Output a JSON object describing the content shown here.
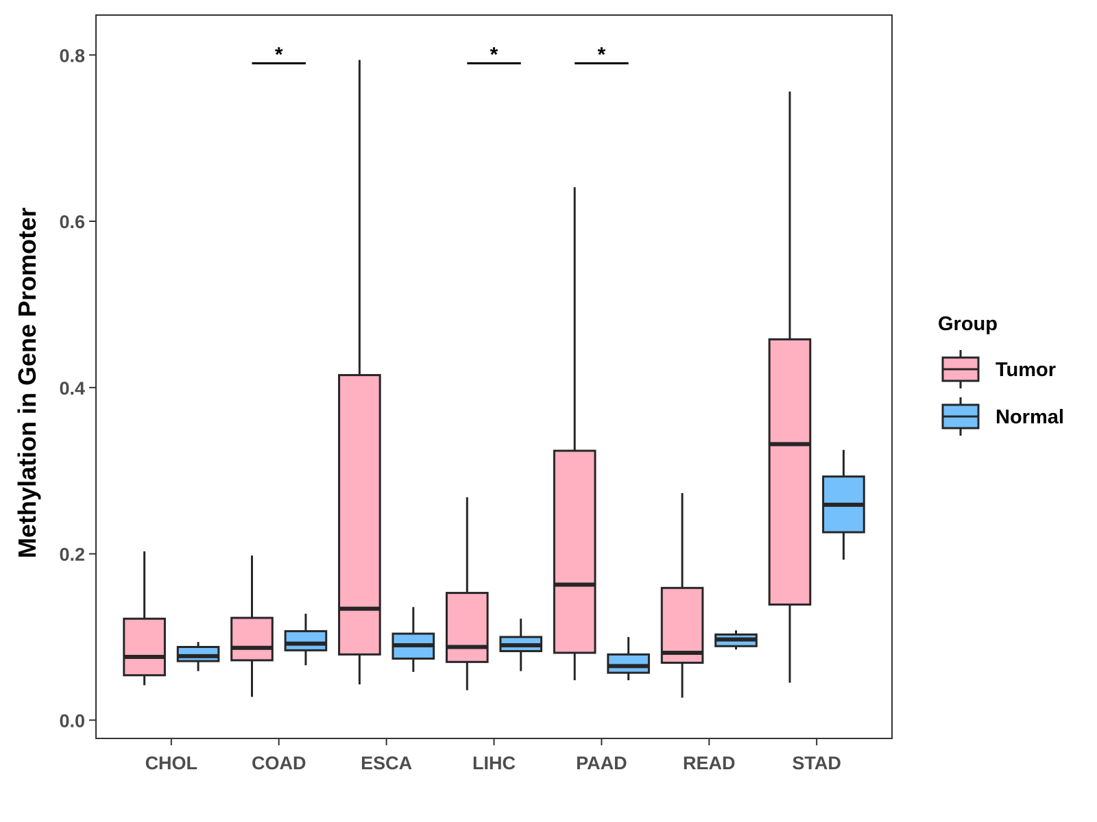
{
  "chart_data": {
    "type": "boxplot",
    "title": "",
    "xlabel": "",
    "ylabel": "Methylation in Gene Promoter",
    "ylim": [
      -0.022,
      0.848
    ],
    "y_ticks": [
      0.0,
      0.2,
      0.4,
      0.6,
      0.8
    ],
    "y_tick_labels": [
      "0.0",
      "0.2",
      "0.4",
      "0.6",
      "0.8"
    ],
    "categories": [
      "CHOL",
      "COAD",
      "ESCA",
      "LIHC",
      "PAAD",
      "READ",
      "STAD"
    ],
    "legend": {
      "title": "Group",
      "placement": "right",
      "entries": [
        {
          "name": "Tumor",
          "color": "#ffb0c1"
        },
        {
          "name": "Normal",
          "color": "#74c0fc"
        }
      ]
    },
    "colors": {
      "tumor_fill": "#ffb0c1",
      "normal_fill": "#74c0fc",
      "box_stroke": "#262626",
      "panel_border": "#333333"
    },
    "series": [
      {
        "name": "Tumor",
        "boxes": [
          {
            "category": "CHOL",
            "whisker_low": 0.042,
            "q1": 0.054,
            "median": 0.076,
            "q3": 0.122,
            "whisker_high": 0.203
          },
          {
            "category": "COAD",
            "whisker_low": 0.028,
            "q1": 0.072,
            "median": 0.087,
            "q3": 0.123,
            "whisker_high": 0.198
          },
          {
            "category": "ESCA",
            "whisker_low": 0.043,
            "q1": 0.079,
            "median": 0.134,
            "q3": 0.415,
            "whisker_high": 0.794
          },
          {
            "category": "LIHC",
            "whisker_low": 0.036,
            "q1": 0.07,
            "median": 0.088,
            "q3": 0.153,
            "whisker_high": 0.268
          },
          {
            "category": "PAAD",
            "whisker_low": 0.048,
            "q1": 0.081,
            "median": 0.163,
            "q3": 0.324,
            "whisker_high": 0.641
          },
          {
            "category": "READ",
            "whisker_low": 0.027,
            "q1": 0.069,
            "median": 0.081,
            "q3": 0.159,
            "whisker_high": 0.273
          },
          {
            "category": "STAD",
            "whisker_low": 0.045,
            "q1": 0.139,
            "median": 0.332,
            "q3": 0.458,
            "whisker_high": 0.756
          }
        ]
      },
      {
        "name": "Normal",
        "boxes": [
          {
            "category": "CHOL",
            "whisker_low": 0.059,
            "q1": 0.071,
            "median": 0.077,
            "q3": 0.088,
            "whisker_high": 0.094
          },
          {
            "category": "COAD",
            "whisker_low": 0.066,
            "q1": 0.084,
            "median": 0.092,
            "q3": 0.107,
            "whisker_high": 0.128
          },
          {
            "category": "ESCA",
            "whisker_low": 0.058,
            "q1": 0.074,
            "median": 0.09,
            "q3": 0.104,
            "whisker_high": 0.136
          },
          {
            "category": "LIHC",
            "whisker_low": 0.059,
            "q1": 0.083,
            "median": 0.09,
            "q3": 0.1,
            "whisker_high": 0.122
          },
          {
            "category": "PAAD",
            "whisker_low": 0.048,
            "q1": 0.057,
            "median": 0.065,
            "q3": 0.079,
            "whisker_high": 0.1
          },
          {
            "category": "READ",
            "whisker_low": 0.085,
            "q1": 0.089,
            "median": 0.097,
            "q3": 0.103,
            "whisker_high": 0.108
          },
          {
            "category": "STAD",
            "whisker_low": 0.193,
            "q1": 0.226,
            "median": 0.259,
            "q3": 0.293,
            "whisker_high": 0.325
          }
        ]
      }
    ],
    "annotations": [
      {
        "category": "COAD",
        "label": "*",
        "y": 0.79
      },
      {
        "category": "LIHC",
        "label": "*",
        "y": 0.79
      },
      {
        "category": "PAAD",
        "label": "*",
        "y": 0.79
      }
    ],
    "grid": false
  }
}
